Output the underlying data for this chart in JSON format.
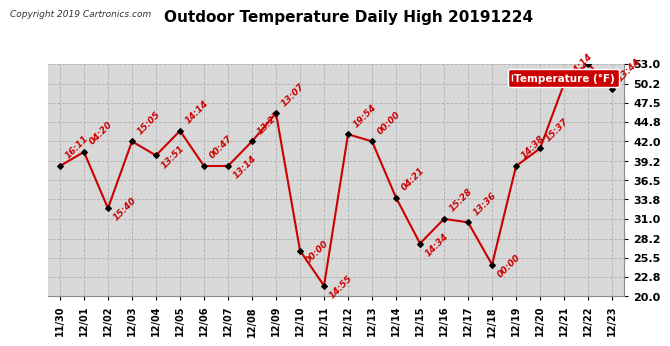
{
  "title": "Outdoor Temperature Daily High 20191224",
  "copyright": "Copyright 2019 Cartronics.com",
  "legend_label": "Temperature (°F)",
  "ylim": [
    20.0,
    53.0
  ],
  "yticks": [
    20.0,
    22.8,
    25.5,
    28.2,
    31.0,
    33.8,
    36.5,
    39.2,
    42.0,
    44.8,
    47.5,
    50.2,
    53.0
  ],
  "plot_bg": "#d8d8d8",
  "line_color": "#cc0000",
  "marker_color": "#000000",
  "dates": [
    "11/30",
    "12/01",
    "12/02",
    "12/03",
    "12/04",
    "12/05",
    "12/06",
    "12/07",
    "12/08",
    "12/09",
    "12/10",
    "12/11",
    "12/12",
    "12/13",
    "12/14",
    "12/15",
    "12/16",
    "12/17",
    "12/18",
    "12/19",
    "12/20",
    "12/21",
    "12/22",
    "12/23"
  ],
  "values": [
    38.5,
    40.5,
    32.5,
    42.0,
    40.0,
    43.5,
    38.5,
    38.5,
    42.0,
    46.0,
    26.5,
    21.5,
    43.0,
    42.0,
    34.0,
    27.5,
    31.0,
    30.5,
    24.5,
    38.5,
    41.0,
    50.2,
    53.0,
    49.5
  ],
  "annotations": [
    "16:11",
    "04:20",
    "15:40",
    "15:05",
    "13:51",
    "14:14",
    "00:47",
    "13:14",
    "13:27",
    "13:07",
    "00:00",
    "14:55",
    "19:54",
    "00:00",
    "04:21",
    "14:34",
    "15:28",
    "13:36",
    "00:00",
    "14:38",
    "15:37",
    "14:14",
    "",
    "13:44"
  ],
  "ann_offsets_x": [
    0.15,
    0.15,
    0.15,
    0.15,
    0.15,
    0.15,
    0.15,
    0.15,
    0.15,
    0.15,
    0.15,
    0.15,
    0.15,
    0.15,
    0.15,
    0.15,
    0.15,
    0.15,
    0.15,
    0.15,
    0.15,
    0.15,
    0.15,
    0.15
  ],
  "ann_offsets_y": [
    0.8,
    0.8,
    -2.0,
    0.8,
    -2.0,
    0.8,
    0.8,
    -2.0,
    0.8,
    0.8,
    -2.0,
    -2.0,
    0.8,
    0.8,
    0.8,
    -2.0,
    0.8,
    0.8,
    -2.0,
    0.8,
    0.8,
    0.8,
    0.8,
    0.8
  ],
  "ann_color": "#cc0000",
  "legend_bg": "#cc0000",
  "legend_text_color": "#ffffff",
  "title_fontsize": 11,
  "tick_fontsize": 7,
  "ann_fontsize": 6.5
}
